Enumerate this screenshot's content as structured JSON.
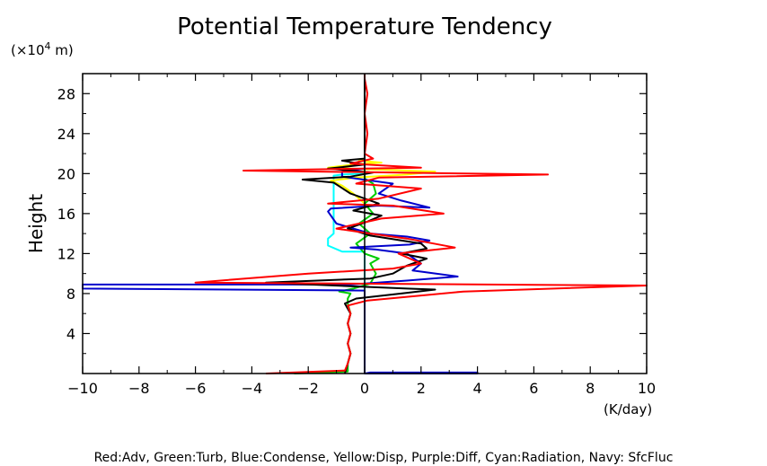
{
  "chart_data": {
    "type": "line",
    "title": "Potential Temperature Tendency",
    "xlabel": "",
    "x_unit": "(K/day)",
    "ylabel": "Height",
    "y_unit_prefix": "(×10",
    "y_unit_exp": "4",
    "y_unit_suffix": " m)",
    "xlim": [
      -10,
      10
    ],
    "ylim": [
      0,
      30
    ],
    "x_ticks": [
      -10,
      -8,
      -6,
      -4,
      -2,
      0,
      2,
      4,
      6,
      8,
      10
    ],
    "x_tick_labels": [
      "−10",
      "−8",
      "−6",
      "−4",
      "−2",
      "0",
      "2",
      "4",
      "6",
      "8",
      "10"
    ],
    "y_ticks": [
      4,
      8,
      12,
      16,
      20,
      24,
      28
    ],
    "y_tick_labels": [
      "4",
      "8",
      "12",
      "16",
      "20",
      "24",
      "28"
    ],
    "legend_text": "Red:Adv, Green:Turb, Blue:Condense, Yellow:Disp, Purple:Diff, Cyan:Radiation, Navy: SfcFluc",
    "grid": false,
    "series": [
      {
        "color": "#00ffff",
        "points": [
          [
            0,
            0
          ],
          [
            0,
            12.2
          ],
          [
            -0.8,
            12.2
          ],
          [
            -1.3,
            12.8
          ],
          [
            -1.3,
            13.5
          ],
          [
            -1.1,
            14
          ],
          [
            -1.1,
            19.8
          ],
          [
            -0.8,
            19.9
          ],
          [
            0,
            20
          ],
          [
            0,
            30
          ]
        ]
      },
      {
        "color": "#ffff00",
        "points": [
          [
            0,
            17
          ],
          [
            -0.4,
            18
          ],
          [
            -0.8,
            18.8
          ],
          [
            -1.2,
            19.3
          ],
          [
            -0.3,
            19.6
          ],
          [
            1.5,
            19.9
          ],
          [
            2.5,
            20.2
          ],
          [
            0.5,
            20.4
          ],
          [
            -1.3,
            20.6
          ],
          [
            -0.4,
            20.9
          ],
          [
            0.6,
            21.1
          ],
          [
            -0.2,
            21.3
          ],
          [
            0,
            21.5
          ]
        ]
      },
      {
        "color": "#00cc00",
        "points": [
          [
            -2.5,
            0
          ],
          [
            -0.6,
            0.2
          ],
          [
            -0.6,
            1
          ],
          [
            -0.5,
            2
          ],
          [
            -0.6,
            3
          ],
          [
            -0.5,
            4
          ],
          [
            -0.6,
            5
          ],
          [
            -0.5,
            6
          ],
          [
            -0.6,
            7
          ],
          [
            -0.6,
            7.5
          ],
          [
            -0.5,
            8
          ],
          [
            -0.9,
            8.2
          ],
          [
            -0.4,
            8.5
          ],
          [
            0.2,
            9
          ],
          [
            0.4,
            10
          ],
          [
            0.2,
            11
          ],
          [
            0.5,
            11.5
          ],
          [
            0,
            12
          ],
          [
            -0.3,
            13
          ],
          [
            0.2,
            14
          ],
          [
            -0.2,
            15
          ],
          [
            0.3,
            16
          ],
          [
            0,
            17
          ],
          [
            0.4,
            18
          ],
          [
            0.3,
            19
          ],
          [
            0,
            19.5
          ],
          [
            0,
            30
          ]
        ]
      },
      {
        "color": "#0000cc",
        "points": [
          [
            0,
            0
          ],
          [
            0.2,
            0.1
          ],
          [
            4,
            0.1
          ],
          [
            4,
            0
          ],
          [
            0,
            0
          ],
          [
            0,
            8.3
          ],
          [
            -10,
            8.5
          ],
          [
            -10,
            8.9
          ],
          [
            -0.5,
            8.9
          ],
          [
            1.5,
            9.3
          ],
          [
            3.3,
            9.7
          ],
          [
            1.7,
            10.3
          ],
          [
            2,
            11
          ],
          [
            1.5,
            12
          ],
          [
            0.4,
            12.4
          ],
          [
            -0.5,
            12.6
          ],
          [
            1.6,
            12.9
          ],
          [
            2.3,
            13.3
          ],
          [
            1.5,
            13.7
          ],
          [
            0.2,
            14
          ],
          [
            -1,
            15
          ],
          [
            -1.3,
            16.2
          ],
          [
            -1.2,
            16.5
          ],
          [
            0.5,
            16.8
          ],
          [
            2.3,
            16.6
          ],
          [
            1.3,
            17.3
          ],
          [
            0.5,
            18
          ],
          [
            1,
            19
          ],
          [
            -0.8,
            19.7
          ],
          [
            -0.8,
            20.2
          ],
          [
            0,
            20.5
          ],
          [
            0,
            30
          ]
        ]
      },
      {
        "color": "#000000",
        "points": [
          [
            -0.7,
            0
          ],
          [
            -0.6,
            1
          ],
          [
            -0.5,
            2
          ],
          [
            -0.6,
            3
          ],
          [
            -0.5,
            4
          ],
          [
            -0.6,
            5
          ],
          [
            -0.5,
            6
          ],
          [
            -0.7,
            7
          ],
          [
            -0.3,
            7.5
          ],
          [
            1.3,
            8
          ],
          [
            2.5,
            8.4
          ],
          [
            1.5,
            8.5
          ],
          [
            -3.5,
            9.1
          ],
          [
            0.2,
            9.5
          ],
          [
            1,
            10
          ],
          [
            1.5,
            10.8
          ],
          [
            2.2,
            11.5
          ],
          [
            1.3,
            12
          ],
          [
            2.2,
            12.5
          ],
          [
            2,
            13
          ],
          [
            0.2,
            13.8
          ],
          [
            -0.6,
            14.5
          ],
          [
            0.1,
            15.2
          ],
          [
            0.6,
            15.8
          ],
          [
            -0.4,
            16.3
          ],
          [
            0.5,
            17
          ],
          [
            -0.5,
            18
          ],
          [
            -1.1,
            19.1
          ],
          [
            -2.2,
            19.4
          ],
          [
            -0.5,
            19.7
          ],
          [
            0.3,
            20.1
          ],
          [
            -1.3,
            20.5
          ],
          [
            0,
            20.9
          ],
          [
            -0.8,
            21.3
          ],
          [
            0,
            21.5
          ],
          [
            0,
            30
          ]
        ]
      },
      {
        "color": "#ff0000",
        "points": [
          [
            -3.5,
            0
          ],
          [
            -0.7,
            0.3
          ],
          [
            -0.6,
            1
          ],
          [
            -0.5,
            2
          ],
          [
            -0.6,
            3
          ],
          [
            -0.5,
            4
          ],
          [
            -0.6,
            5
          ],
          [
            -0.5,
            6
          ],
          [
            -0.6,
            6.8
          ],
          [
            0.1,
            7.3
          ],
          [
            3.5,
            8.2
          ],
          [
            10,
            8.8
          ],
          [
            -6,
            9.1
          ],
          [
            -2,
            10
          ],
          [
            1,
            10.5
          ],
          [
            2,
            11
          ],
          [
            1.2,
            12
          ],
          [
            3.2,
            12.6
          ],
          [
            1.5,
            13.5
          ],
          [
            0.2,
            14
          ],
          [
            -1,
            14.5
          ],
          [
            0.6,
            15.5
          ],
          [
            2.8,
            16
          ],
          [
            1,
            16.8
          ],
          [
            -1.3,
            17
          ],
          [
            0.5,
            17.5
          ],
          [
            2,
            18.5
          ],
          [
            -0.3,
            19
          ],
          [
            0.5,
            19.6
          ],
          [
            6.5,
            19.9
          ],
          [
            -4.3,
            20.3
          ],
          [
            2,
            20.6
          ],
          [
            -0.5,
            21
          ],
          [
            0.3,
            21.5
          ],
          [
            0,
            22
          ],
          [
            0.1,
            24
          ],
          [
            0,
            26
          ],
          [
            0.1,
            28
          ],
          [
            0,
            29.5
          ],
          [
            0,
            30
          ]
        ]
      }
    ]
  }
}
